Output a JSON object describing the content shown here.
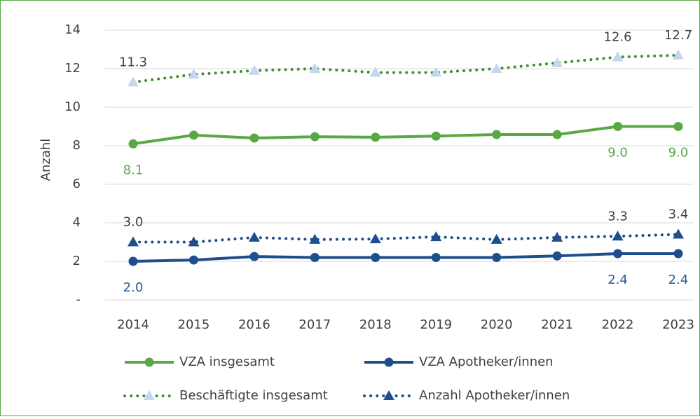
{
  "chart_data": {
    "type": "line",
    "y_label": "Anzahl",
    "categories": [
      "2014",
      "2015",
      "2016",
      "2017",
      "2018",
      "2019",
      "2020",
      "2021",
      "2022",
      "2023"
    ],
    "ylim": [
      0,
      14
    ],
    "yticks": [
      {
        "value": 0,
        "label": "-"
      },
      2,
      4,
      6,
      8,
      10,
      12,
      14
    ],
    "grid": true,
    "legend": "bottom",
    "series": [
      {
        "name": "VZA insgesamt",
        "color": "#5aa845",
        "marker": "circle",
        "marker_color": "#5aa845",
        "dash": "solid",
        "label_color": "#5aa845",
        "label_position": "below",
        "values": [
          8.1,
          8.55,
          8.4,
          8.47,
          8.44,
          8.5,
          8.58,
          8.58,
          9.0,
          9.0
        ],
        "value_labels": [
          "8.1",
          null,
          null,
          null,
          null,
          null,
          null,
          null,
          "9.0",
          "9.0"
        ]
      },
      {
        "name": "VZA Apotheker/innen",
        "color": "#1f4e8c",
        "marker": "circle",
        "marker_color": "#1f4e8c",
        "dash": "solid",
        "label_color": "#2e5a94",
        "label_position": "below",
        "values": [
          2.0,
          2.07,
          2.25,
          2.2,
          2.2,
          2.2,
          2.2,
          2.28,
          2.4,
          2.4
        ],
        "value_labels": [
          "2.0",
          null,
          null,
          null,
          null,
          null,
          null,
          null,
          "2.4",
          "2.4"
        ]
      },
      {
        "name": "Beschäftigte insgesamt",
        "color": "#3f8f2e",
        "marker": "triangle",
        "marker_color": "#c5d6ef",
        "dash": "dotted",
        "label_color": "#404040",
        "label_position": "above",
        "values": [
          11.3,
          11.7,
          11.9,
          12.0,
          11.8,
          11.8,
          12.0,
          12.3,
          12.6,
          12.7
        ],
        "value_labels": [
          "11.3",
          null,
          null,
          null,
          null,
          null,
          null,
          null,
          "12.6",
          "12.7"
        ]
      },
      {
        "name": "Anzahl Apotheker/innen",
        "color": "#1f4e8c",
        "marker": "triangle",
        "marker_color": "#1f4e8c",
        "dash": "dotted",
        "label_color": "#404040",
        "label_position": "above",
        "values": [
          3.0,
          3.0,
          3.24,
          3.13,
          3.16,
          3.27,
          3.13,
          3.24,
          3.3,
          3.4
        ],
        "value_labels": [
          "3.0",
          null,
          null,
          null,
          null,
          null,
          null,
          null,
          "3.3",
          "3.4"
        ]
      }
    ]
  }
}
